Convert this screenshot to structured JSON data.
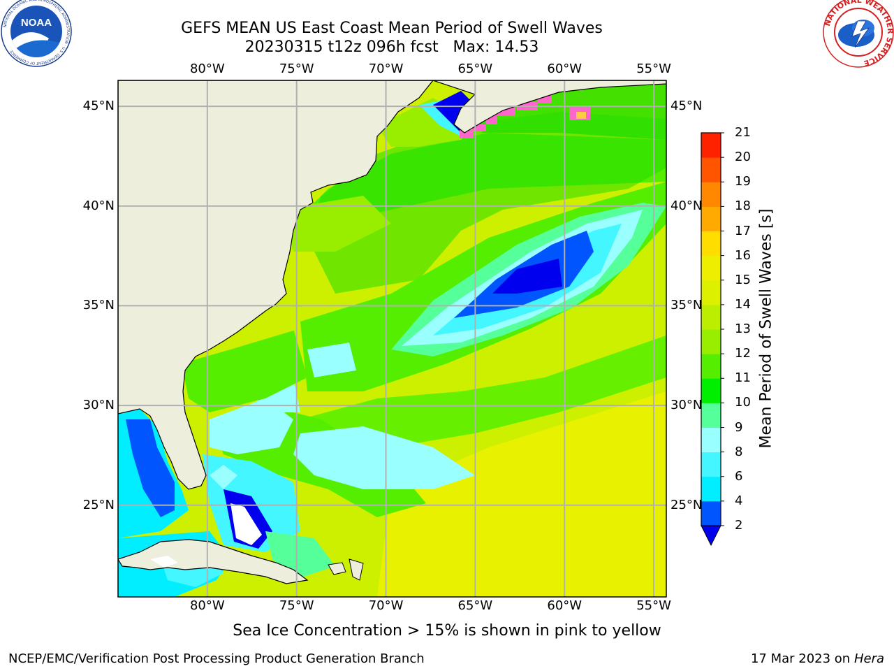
{
  "title": {
    "line1": "GEFS MEAN US East Coast Mean Period of Swell Waves",
    "line2": "20230315 t12z 096h fcst   Max: 14.53"
  },
  "map": {
    "lon_labels": [
      "80°W",
      "75°W",
      "70°W",
      "65°W",
      "60°W",
      "55°W"
    ],
    "lat_labels": [
      "45°N",
      "40°N",
      "35°N",
      "30°N",
      "25°N"
    ],
    "lon_values": [
      -80,
      -75,
      -70,
      -65,
      -60,
      -55
    ],
    "lat_values": [
      45,
      40,
      35,
      30,
      25
    ],
    "extent": {
      "lon": [
        -85,
        -54.3
      ],
      "lat": [
        20.4,
        46.3
      ]
    },
    "grid": true,
    "land_color": "#eeeedc"
  },
  "colorbar": {
    "title": "Mean Period of Swell Waves [s]",
    "ticks": [
      "2",
      "4",
      "6",
      "8",
      "9",
      "10",
      "11",
      "12",
      "13",
      "14",
      "15",
      "16",
      "17",
      "18",
      "19",
      "20",
      "21"
    ],
    "colors": [
      "#0055ff",
      "#00eeff",
      "#44f6ff",
      "#99ffff",
      "#55ff99",
      "#00ee00",
      "#55ee00",
      "#99ee00",
      "#bbee00",
      "#ddf000",
      "#eeee00",
      "#ffdd00",
      "#ffaa00",
      "#ff8800",
      "#ff5500",
      "#ff2200"
    ],
    "under_color": "#0000ee"
  },
  "note": "Sea Ice Concentration > 15% is shown in pink to yellow",
  "credit_left": "NCEP/EMC/Verification Post Processing Product Generation Branch",
  "credit_date": "17 Mar 2023 on",
  "credit_host": "Hera",
  "logos": {
    "noaa_text": "NOAA",
    "noaa_ring": "NATIONAL OCEANIC AND ATMOSPHERIC ADMINISTRATION · U.S. DEPARTMENT OF COMMERCE",
    "nws_ring": "NATIONAL WEATHER SERVICE"
  }
}
